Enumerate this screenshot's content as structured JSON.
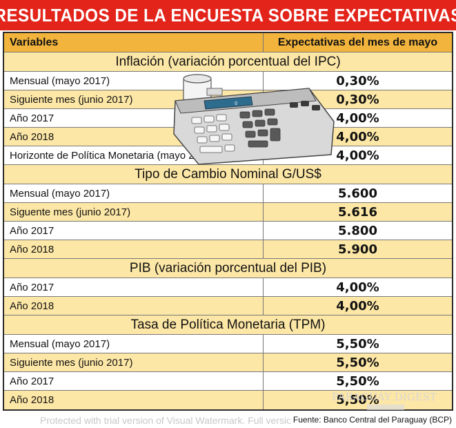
{
  "title": "RESULTADOS DE LA ENCUESTA SOBRE EXPECTATIVAS",
  "header": {
    "variables": "Variables",
    "expectations": "Expectativas del mes de mayo"
  },
  "sections": [
    {
      "title": "Inflación (variación porcentual del IPC)",
      "rows": [
        {
          "label": "Mensual (mayo 2017)",
          "value": "0,30%"
        },
        {
          "label": "Siguiente mes (junio 2017)",
          "value": "0,30%"
        },
        {
          "label": "Año 2017",
          "value": "4,00%"
        },
        {
          "label": "Año 2018",
          "value": "4,00%"
        },
        {
          "label": "Horizonte de Política Monetaria (mayo 2019)",
          "value": "4,00%"
        }
      ]
    },
    {
      "title": "Tipo de Cambio Nominal G/US$",
      "rows": [
        {
          "label": "Mensual (mayo 2017)",
          "value": "5.600"
        },
        {
          "label": "Siguente mes (junio 2017)",
          "value": "5.616"
        },
        {
          "label": "Año 2017",
          "value": "5.800"
        },
        {
          "label": "Año 2018",
          "value": "5.900"
        }
      ]
    },
    {
      "title": "PIB (variación porcentual del PIB)",
      "rows": [
        {
          "label": "Año 2017",
          "value": "4,00%"
        },
        {
          "label": "Año 2018",
          "value": "4,00%"
        }
      ]
    },
    {
      "title": "Tasa de Política Monetaria (TPM)",
      "rows": [
        {
          "label": "Mensual (mayo 2017)",
          "value": "5,50%"
        },
        {
          "label": "Siguiente mes (junio 2017)",
          "value": "5,50%"
        },
        {
          "label": "Año 2017",
          "value": "5,50%"
        },
        {
          "label": "Año 2018",
          "value": "5,50%"
        }
      ]
    }
  ],
  "source": "Fuente: Banco Central del Paraguay (BCP)",
  "watermark": "Protected with trial version of Visual Watermark. Full versio",
  "logo_text": "PARAGUAY DIGEST",
  "calculator_display": "0",
  "colors": {
    "title_bg": "#e3241b",
    "header_bg": "#f2b43c",
    "stripe": "#fde7a6"
  }
}
